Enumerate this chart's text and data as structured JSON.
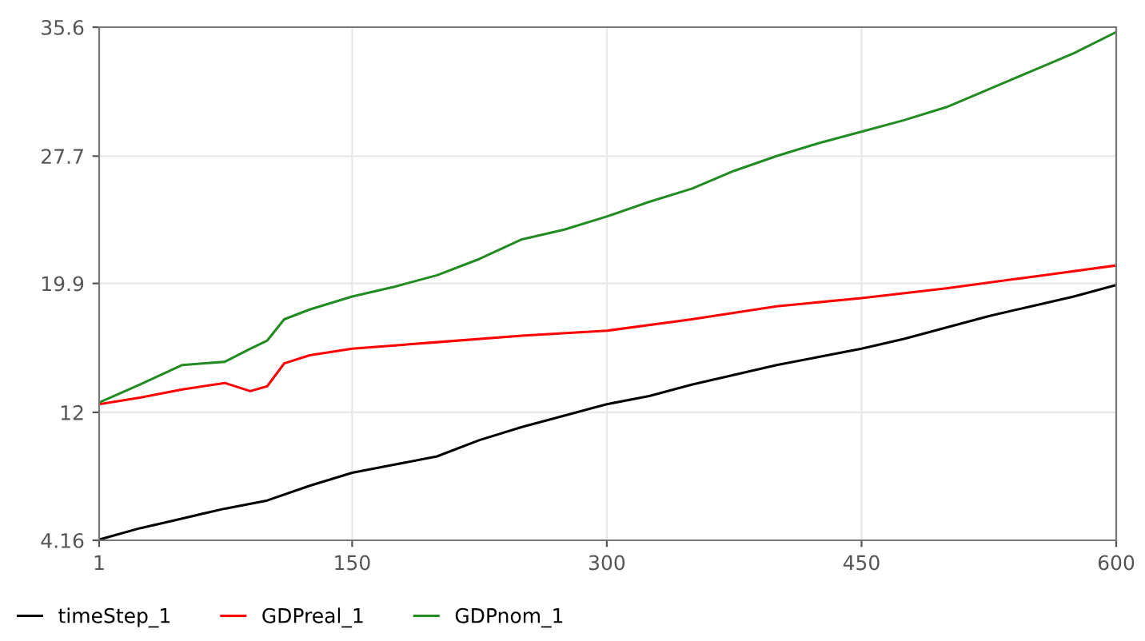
{
  "chart_data": {
    "type": "line",
    "xlim": [
      1,
      600
    ],
    "ylim": [
      4.16,
      35.6
    ],
    "xticks": [
      1,
      150,
      300,
      450,
      600
    ],
    "yticks": [
      4.16,
      12,
      19.9,
      27.7,
      35.6
    ],
    "grid": true,
    "legend": "bottom",
    "line_style": "solid",
    "marker": "none",
    "series": [
      {
        "name": "timeStep_1",
        "color": "#000000",
        "x": [
          1,
          25,
          50,
          75,
          100,
          125,
          150,
          175,
          200,
          225,
          250,
          275,
          300,
          325,
          350,
          375,
          400,
          425,
          450,
          475,
          500,
          525,
          550,
          575,
          600
        ],
        "values": [
          4.2,
          4.9,
          5.5,
          6.1,
          6.6,
          7.5,
          8.3,
          8.8,
          9.3,
          10.3,
          11.1,
          11.8,
          12.5,
          13.0,
          13.7,
          14.3,
          14.9,
          15.4,
          15.9,
          16.5,
          17.2,
          17.9,
          18.5,
          19.1,
          19.8
        ]
      },
      {
        "name": "GDPreal_1",
        "color": "#ff0000",
        "x": [
          1,
          25,
          50,
          75,
          90,
          100,
          110,
          125,
          150,
          175,
          200,
          250,
          300,
          350,
          400,
          450,
          500,
          550,
          600
        ],
        "values": [
          12.5,
          12.9,
          13.4,
          13.8,
          13.3,
          13.6,
          15.0,
          15.5,
          15.9,
          16.1,
          16.3,
          16.7,
          17.0,
          17.7,
          18.5,
          19.0,
          19.6,
          20.3,
          21.0
        ]
      },
      {
        "name": "GDPnom_1",
        "color": "#228b22",
        "x": [
          1,
          25,
          50,
          75,
          90,
          100,
          110,
          125,
          150,
          175,
          200,
          225,
          250,
          275,
          300,
          325,
          350,
          375,
          400,
          425,
          450,
          475,
          500,
          525,
          550,
          575,
          600
        ],
        "values": [
          12.6,
          13.7,
          14.9,
          15.1,
          15.9,
          16.4,
          17.7,
          18.3,
          19.1,
          19.7,
          20.4,
          21.4,
          22.6,
          23.2,
          24.0,
          24.9,
          25.7,
          26.8,
          27.7,
          28.5,
          29.2,
          29.9,
          30.7,
          31.8,
          32.9,
          34.0,
          35.3
        ]
      }
    ]
  }
}
